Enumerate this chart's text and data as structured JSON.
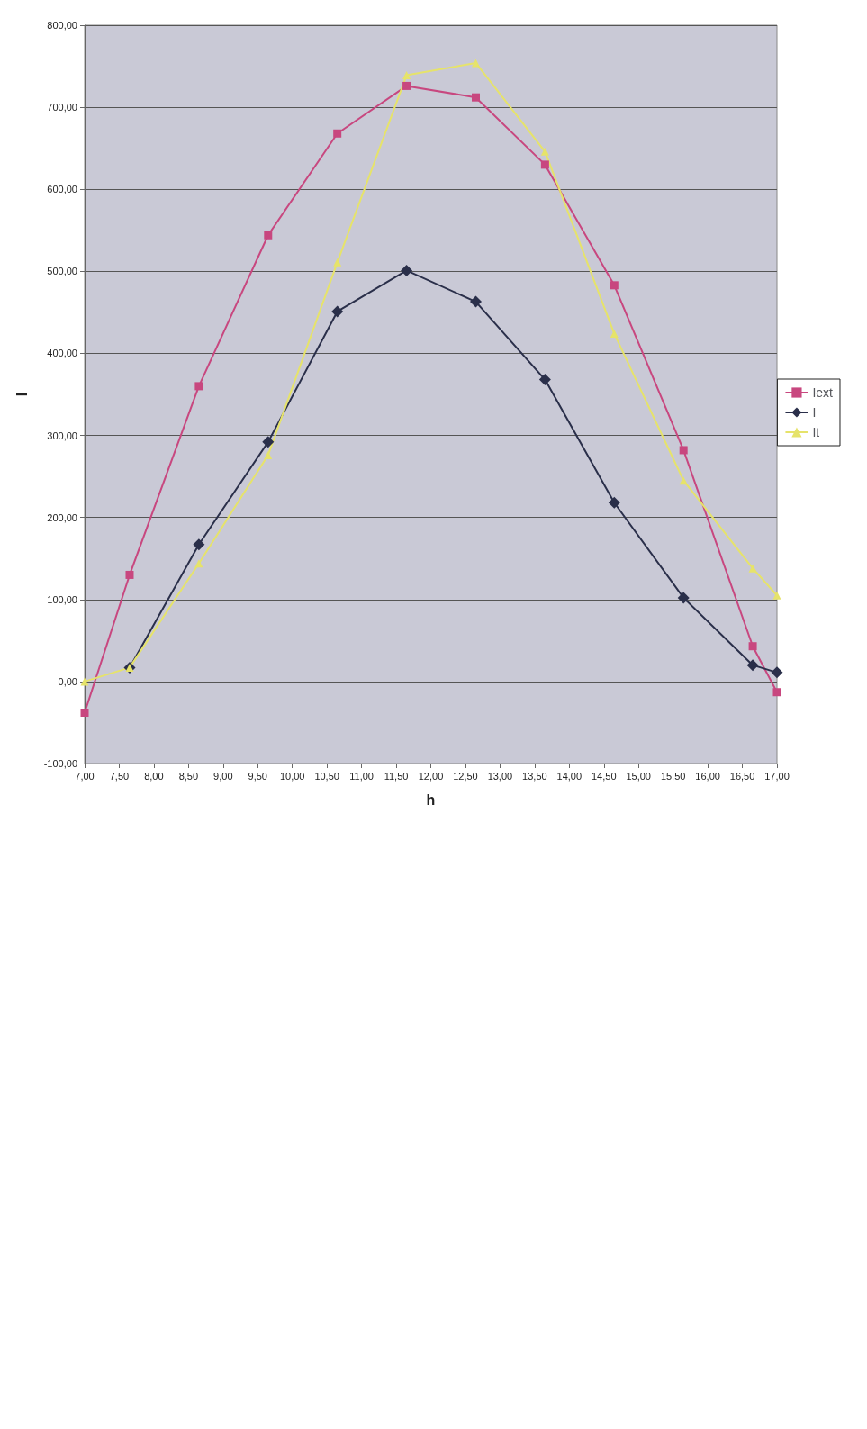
{
  "chart_data": {
    "type": "line",
    "xlabel": "h",
    "ylabel": "I",
    "legend": "right",
    "grid": "y",
    "xlim": [
      7,
      17
    ],
    "xticks": [
      {
        "value": 7,
        "label": "7,00"
      },
      {
        "value": 7.5,
        "label": "7,50"
      },
      {
        "value": 8,
        "label": "8,00"
      },
      {
        "value": 8.5,
        "label": "8,50"
      },
      {
        "value": 9,
        "label": "9,00"
      },
      {
        "value": 9.5,
        "label": "9,50"
      },
      {
        "value": 10,
        "label": "10,00"
      },
      {
        "value": 10.5,
        "label": "10,50"
      },
      {
        "value": 11,
        "label": "11,00"
      },
      {
        "value": 11.5,
        "label": "11,50"
      },
      {
        "value": 12,
        "label": "12,00"
      },
      {
        "value": 12.5,
        "label": "12,50"
      },
      {
        "value": 13,
        "label": "13,00"
      },
      {
        "value": 13.5,
        "label": "13,50"
      },
      {
        "value": 14,
        "label": "14,00"
      },
      {
        "value": 14.5,
        "label": "14,50"
      },
      {
        "value": 15,
        "label": "15,00"
      },
      {
        "value": 15.5,
        "label": "15,50"
      },
      {
        "value": 16,
        "label": "16,00"
      },
      {
        "value": 16.5,
        "label": "16,50"
      },
      {
        "value": 17,
        "label": "17,00"
      }
    ],
    "ylim": [
      -100,
      800
    ],
    "yticks": [
      {
        "value": -100,
        "label": "-100,00"
      },
      {
        "value": 0,
        "label": "0,00"
      },
      {
        "value": 100,
        "label": "100,00"
      },
      {
        "value": 200,
        "label": "200,00"
      },
      {
        "value": 300,
        "label": "300,00"
      },
      {
        "value": 400,
        "label": "400,00"
      },
      {
        "value": 500,
        "label": "500,00"
      },
      {
        "value": 600,
        "label": "600,00"
      },
      {
        "value": 700,
        "label": "700,00"
      },
      {
        "value": 800,
        "label": "800,00"
      }
    ],
    "series": [
      {
        "name": "Iext",
        "color": "#c8477f",
        "marker": "square",
        "x": [
          7,
          7.65,
          8.65,
          9.65,
          10.65,
          11.65,
          12.65,
          13.65,
          14.65,
          15.65,
          16.65,
          17
        ],
        "values": [
          -38,
          130,
          360,
          544,
          668,
          726,
          712,
          630,
          483,
          282,
          43,
          -13
        ]
      },
      {
        "name": "I",
        "color": "#2a2f4a",
        "marker": "diamond",
        "x": [
          7.65,
          8.65,
          9.65,
          10.65,
          11.65,
          12.65,
          13.65,
          14.65,
          15.65,
          16.65,
          17
        ],
        "values": [
          17,
          167,
          292,
          451,
          501,
          463,
          368,
          218,
          102,
          20,
          11
        ]
      },
      {
        "name": "It",
        "color": "#e6e36a",
        "marker": "triangle",
        "x": [
          7,
          7.65,
          8.65,
          9.65,
          10.65,
          11.65,
          12.65,
          13.65,
          14.65,
          15.65,
          16.65,
          17
        ],
        "values": [
          0,
          17,
          144,
          276,
          511,
          739,
          754,
          646,
          424,
          245,
          138,
          105
        ]
      }
    ]
  }
}
